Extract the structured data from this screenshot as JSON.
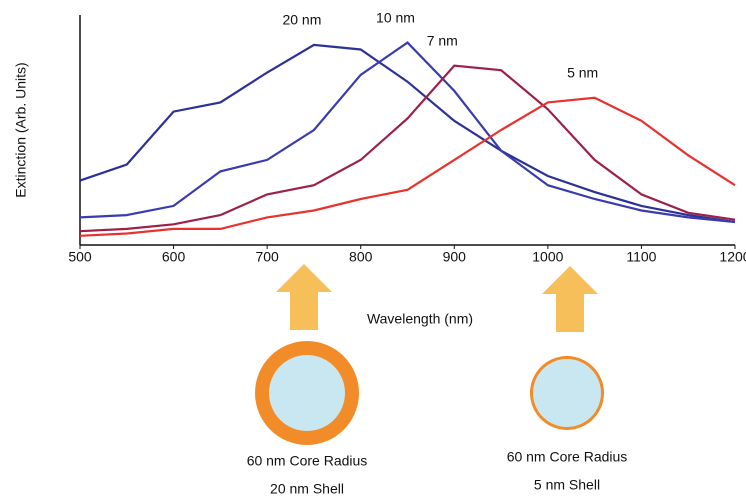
{
  "chart_data": {
    "type": "line",
    "x_label": "Wavelength (nm)",
    "y_label": "Extinction (Arb. Units)",
    "x": [
      500,
      550,
      600,
      650,
      700,
      750,
      800,
      850,
      900,
      950,
      1000,
      1050,
      1100,
      1150,
      1200
    ],
    "series": [
      {
        "name": "20 nm",
        "color": "#2b3196",
        "values": [
          0.28,
          0.35,
          0.58,
          0.62,
          0.75,
          0.87,
          0.85,
          0.71,
          0.54,
          0.41,
          0.3,
          0.23,
          0.17,
          0.13,
          0.1
        ]
      },
      {
        "name": "10 nm",
        "color": "#3a3cae",
        "values": [
          0.12,
          0.13,
          0.17,
          0.32,
          0.37,
          0.5,
          0.74,
          0.88,
          0.67,
          0.41,
          0.26,
          0.2,
          0.15,
          0.12,
          0.1
        ]
      },
      {
        "name": "7 nm",
        "color": "#9b2148",
        "values": [
          0.06,
          0.07,
          0.09,
          0.13,
          0.22,
          0.26,
          0.37,
          0.55,
          0.78,
          0.76,
          0.59,
          0.37,
          0.22,
          0.14,
          0.11
        ]
      },
      {
        "name": "5 nm",
        "color": "#e8322e",
        "values": [
          0.04,
          0.05,
          0.07,
          0.07,
          0.12,
          0.15,
          0.2,
          0.24,
          0.37,
          0.5,
          0.62,
          0.64,
          0.54,
          0.39,
          0.26
        ]
      }
    ],
    "xlim": [
      500,
      1200
    ],
    "ylim": [
      0,
      1
    ],
    "xticks": [
      500,
      600,
      700,
      800,
      900,
      1000,
      1100,
      1200
    ],
    "annotations": [
      "60 nm Core Radius",
      "20 nm Shell",
      "60 nm Core Radius",
      "5 nm Shell"
    ]
  }
}
